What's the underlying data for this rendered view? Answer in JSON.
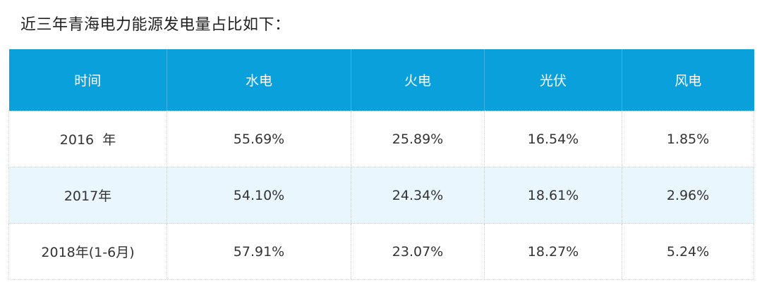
{
  "title": "近三年青海电力能源发电量占比如下：",
  "table": {
    "headers": [
      "时间",
      "水电",
      "火电",
      "光伏",
      "风电"
    ],
    "rows": [
      [
        "2016  年",
        "55.69%",
        "25.89%",
        "16.54%",
        "1.85%"
      ],
      [
        "2017年",
        "54.10%",
        "24.34%",
        "18.61%",
        "2.96%"
      ],
      [
        "2018年(1-6月)",
        "57.91%",
        "23.07%",
        "18.27%",
        "5.24%"
      ]
    ]
  },
  "colors": {
    "header_bg": "#0aa0dc",
    "alt_row_bg": "#eaf6fd"
  }
}
